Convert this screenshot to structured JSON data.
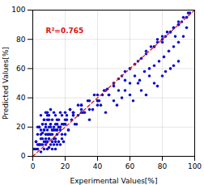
{
  "chart_data": {
    "type": "scatter",
    "xlabel": "Experimental Values[%]",
    "ylabel": "Predicted Values[%]",
    "xlim": [
      0,
      100
    ],
    "ylim": [
      0,
      100
    ],
    "xticks": [
      0,
      20,
      40,
      60,
      80,
      100
    ],
    "yticks": [
      0,
      20,
      40,
      60,
      80,
      100
    ],
    "grid": true,
    "series": [
      {
        "type": "scatter",
        "color": "#1010CC",
        "marker": "circle",
        "x": [
          2,
          3,
          3,
          4,
          4,
          5,
          5,
          5,
          6,
          6,
          6,
          7,
          7,
          7,
          7,
          8,
          8,
          8,
          8,
          8,
          9,
          9,
          9,
          9,
          9,
          10,
          10,
          10,
          10,
          11,
          11,
          11,
          11,
          12,
          12,
          12,
          12,
          13,
          13,
          13,
          14,
          14,
          14,
          14,
          15,
          15,
          15,
          16,
          16,
          17,
          17,
          18,
          18,
          19,
          20,
          1,
          2,
          3,
          4,
          5,
          6,
          7,
          8,
          9,
          10,
          11,
          12,
          13,
          14,
          15,
          16,
          17,
          18,
          19,
          20,
          21,
          22,
          23,
          25,
          27,
          30,
          32,
          35,
          37,
          40,
          42,
          45,
          47,
          50,
          52,
          55,
          57,
          60,
          62,
          65,
          67,
          70,
          72,
          75,
          77,
          80,
          82,
          85,
          87,
          90,
          3,
          5,
          7,
          9,
          11,
          13,
          15,
          17,
          19,
          21,
          23,
          25,
          28,
          31,
          34,
          38,
          41,
          44,
          47,
          50,
          53,
          57,
          60,
          63,
          66,
          69,
          72,
          75,
          78,
          81,
          84,
          87,
          90,
          93,
          95,
          10,
          15,
          20,
          25,
          30,
          35,
          40,
          45,
          50,
          55,
          60,
          65,
          70,
          75,
          80,
          85,
          90,
          95,
          40,
          43,
          46,
          50,
          53,
          57,
          60,
          63,
          67,
          70,
          73,
          77,
          80,
          83,
          87,
          90,
          93,
          96,
          75,
          77,
          80,
          82,
          85,
          87,
          88,
          90,
          92,
          95,
          97,
          5,
          10,
          15,
          20,
          25,
          30,
          2,
          4,
          6,
          8,
          10,
          12,
          14,
          16,
          18,
          20,
          22,
          24,
          26,
          28,
          30,
          35,
          40
        ],
        "values": [
          10,
          15,
          5,
          20,
          8,
          18,
          12,
          3,
          22,
          16,
          8,
          25,
          18,
          10,
          5,
          22,
          15,
          8,
          30,
          20,
          18,
          10,
          5,
          25,
          15,
          20,
          12,
          6,
          28,
          22,
          15,
          8,
          32,
          18,
          10,
          5,
          25,
          20,
          12,
          8,
          18,
          10,
          5,
          28,
          22,
          15,
          8,
          20,
          10,
          18,
          8,
          12,
          22,
          10,
          15,
          5,
          10,
          8,
          20,
          15,
          22,
          18,
          12,
          28,
          25,
          20,
          15,
          30,
          22,
          18,
          25,
          20,
          28,
          22,
          30,
          25,
          18,
          32,
          28,
          22,
          35,
          30,
          25,
          32,
          38,
          35,
          30,
          42,
          38,
          35,
          40,
          45,
          42,
          38,
          50,
          45,
          42,
          55,
          50,
          48,
          55,
          58,
          60,
          62,
          65,
          20,
          28,
          25,
          30,
          22,
          18,
          25,
          30,
          22,
          28,
          32,
          30,
          35,
          30,
          38,
          42,
          38,
          45,
          42,
          48,
          45,
          52,
          50,
          55,
          52,
          58,
          60,
          62,
          65,
          68,
          72,
          75,
          78,
          82,
          88,
          15,
          22,
          25,
          30,
          35,
          38,
          42,
          45,
          50,
          55,
          60,
          65,
          70,
          75,
          80,
          85,
          90,
          95,
          38,
          42,
          46,
          50,
          53,
          58,
          60,
          63,
          67,
          72,
          75,
          78,
          82,
          85,
          88,
          92,
          95,
          98,
          75,
          80,
          78,
          82,
          85,
          88,
          82,
          90,
          92,
          95,
          98,
          8,
          12,
          18,
          22,
          28,
          32,
          5,
          8,
          12,
          10,
          15,
          18,
          12,
          20,
          15,
          22,
          18,
          25,
          22,
          28,
          30,
          32,
          35
        ]
      },
      {
        "type": "line",
        "color": "#DD1111",
        "line_style": "dashed",
        "x": [
          0,
          100
        ],
        "values": [
          0,
          100
        ]
      }
    ],
    "annotations": [
      {
        "text": "R²=0.765",
        "x": 8,
        "y": 84,
        "color": "#DD1111"
      }
    ]
  }
}
